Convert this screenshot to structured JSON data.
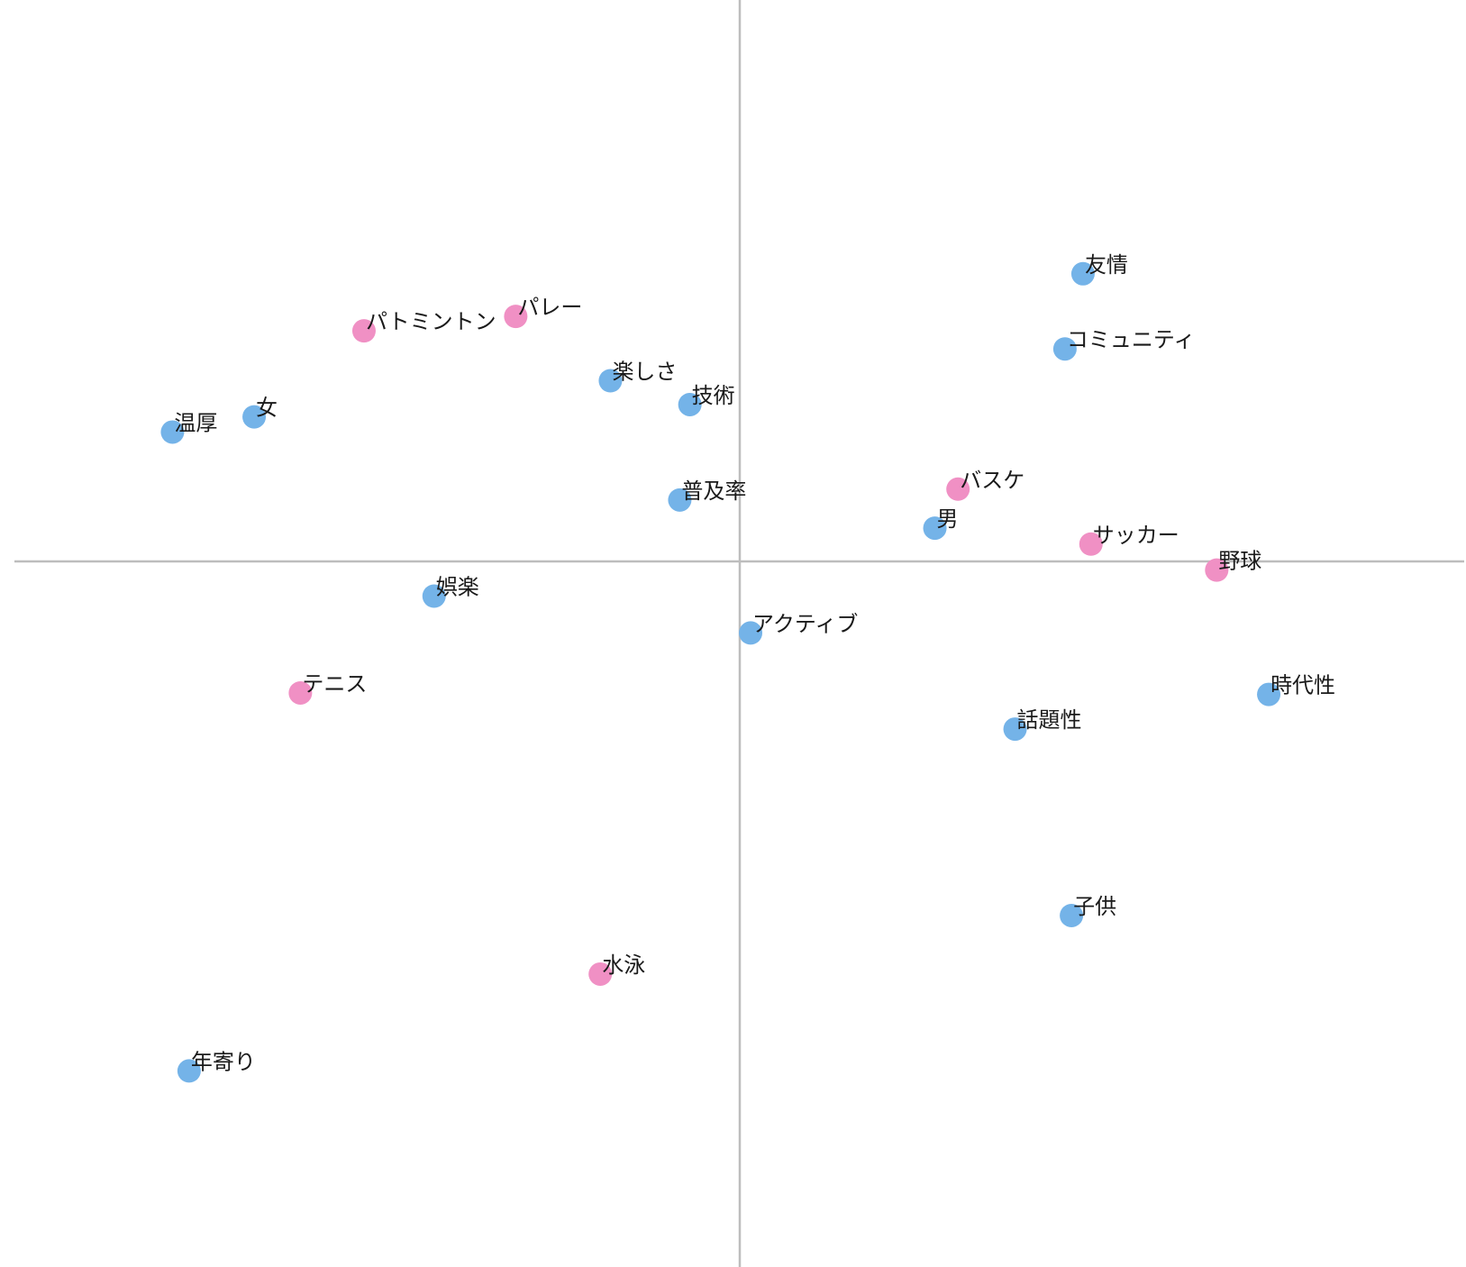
{
  "chart_data": {
    "type": "scatter",
    "title": "",
    "xlabel": "",
    "ylabel": "",
    "xlim": [
      -1.0,
      1.0
    ],
    "ylim": [
      -1.0,
      1.0
    ],
    "grid": false,
    "legend": "none",
    "colors": {
      "attribute": "#74b3e8",
      "sport": "#f090c4",
      "axis": "#bdbdbd",
      "label": "#1a1a1a"
    },
    "points": [
      {
        "label": "友情",
        "group": "attribute",
        "x": 0.475,
        "y": 0.398
      },
      {
        "label": "コミュニティ",
        "group": "attribute",
        "x": 0.45,
        "y": 0.294
      },
      {
        "label": "パトミントン",
        "group": "sport",
        "x": -0.52,
        "y": 0.319
      },
      {
        "label": "パレー",
        "group": "sport",
        "x": -0.31,
        "y": 0.339
      },
      {
        "label": "楽しさ",
        "group": "attribute",
        "x": -0.179,
        "y": 0.25
      },
      {
        "label": "技術",
        "group": "attribute",
        "x": -0.069,
        "y": 0.217
      },
      {
        "label": "女",
        "group": "attribute",
        "x": -0.672,
        "y": 0.2
      },
      {
        "label": "温厚",
        "group": "attribute",
        "x": -0.785,
        "y": 0.179
      },
      {
        "label": "普及率",
        "group": "attribute",
        "x": -0.083,
        "y": 0.085
      },
      {
        "label": "バスケ",
        "group": "sport",
        "x": 0.302,
        "y": 0.1
      },
      {
        "label": "男",
        "group": "attribute",
        "x": 0.27,
        "y": 0.046
      },
      {
        "label": "サッカー",
        "group": "sport",
        "x": 0.486,
        "y": 0.024
      },
      {
        "label": "野球",
        "group": "sport",
        "x": 0.66,
        "y": -0.012
      },
      {
        "label": "娯楽",
        "group": "attribute",
        "x": -0.423,
        "y": -0.048
      },
      {
        "label": "アクティブ",
        "group": "attribute",
        "x": 0.015,
        "y": -0.099
      },
      {
        "label": "テニス",
        "group": "sport",
        "x": -0.608,
        "y": -0.182
      },
      {
        "label": "時代性",
        "group": "attribute",
        "x": 0.732,
        "y": -0.184
      },
      {
        "label": "話題性",
        "group": "attribute",
        "x": 0.381,
        "y": -0.232
      },
      {
        "label": "子供",
        "group": "attribute",
        "x": 0.459,
        "y": -0.49
      },
      {
        "label": "水泳",
        "group": "sport",
        "x": -0.193,
        "y": -0.571
      },
      {
        "label": "年寄り",
        "group": "attribute",
        "x": -0.762,
        "y": -0.705
      }
    ]
  }
}
